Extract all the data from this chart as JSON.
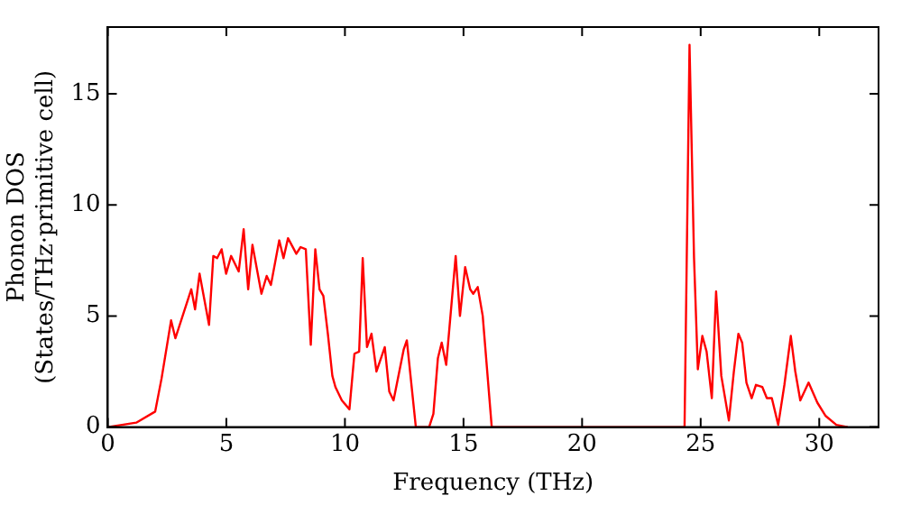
{
  "chart_data": {
    "type": "line",
    "xlabel": "Frequency (THz)",
    "ylabel": "Phonon DOS\n(States/THz·primitive cell)",
    "xlim": [
      0,
      32.5
    ],
    "ylim": [
      0,
      18
    ],
    "xticks": [
      0,
      5,
      10,
      15,
      20,
      25,
      30
    ],
    "yticks": [
      0,
      5,
      10,
      15
    ],
    "grid": false,
    "legend": false,
    "marker": "none",
    "line_style": "solid",
    "series": [
      {
        "color": "#ff0000",
        "x": [
          0,
          1.2,
          2.0,
          2.27,
          2.67,
          2.85,
          3.52,
          3.68,
          3.87,
          4.27,
          4.45,
          4.61,
          4.8,
          4.99,
          5.2,
          5.52,
          5.73,
          5.92,
          6.1,
          6.48,
          6.7,
          6.88,
          7.23,
          7.41,
          7.6,
          7.95,
          8.13,
          8.35,
          8.56,
          8.75,
          8.93,
          9.09,
          9.28,
          9.47,
          9.6,
          9.87,
          10.19,
          10.4,
          10.6,
          10.75,
          10.93,
          11.12,
          11.33,
          11.68,
          11.87,
          12.05,
          12.48,
          12.61,
          12.99,
          13.55,
          13.73,
          13.92,
          14.08,
          14.27,
          14.67,
          14.85,
          15.07,
          15.28,
          15.41,
          15.6,
          15.81,
          16.19,
          24.32,
          24.53,
          24.72,
          24.88,
          25.07,
          25.25,
          25.47,
          25.65,
          25.87,
          26.19,
          26.4,
          26.59,
          26.75,
          26.93,
          27.15,
          27.33,
          27.6,
          27.79,
          28.0,
          28.27,
          28.53,
          28.8,
          28.99,
          29.2,
          29.55,
          29.92,
          30.27,
          30.72,
          31.2
        ],
        "values": [
          0,
          0.2,
          0.7,
          2.2,
          4.8,
          4.0,
          6.2,
          5.3,
          6.9,
          4.6,
          7.7,
          7.6,
          8.0,
          6.9,
          7.7,
          7.0,
          8.9,
          6.2,
          8.2,
          6.0,
          6.8,
          6.4,
          8.4,
          7.6,
          8.5,
          7.8,
          8.1,
          8.0,
          3.7,
          8.0,
          6.2,
          5.9,
          4.2,
          2.3,
          1.8,
          1.2,
          0.8,
          3.3,
          3.4,
          7.6,
          3.6,
          4.2,
          2.5,
          3.6,
          1.6,
          1.2,
          3.5,
          3.9,
          0,
          0,
          0.6,
          3.1,
          3.8,
          2.8,
          7.7,
          5.0,
          7.2,
          6.2,
          6.0,
          6.3,
          5.0,
          0,
          0,
          17.2,
          7.6,
          2.6,
          4.1,
          3.4,
          1.3,
          6.1,
          2.3,
          0.3,
          2.5,
          4.2,
          3.8,
          2.0,
          1.3,
          1.9,
          1.8,
          1.3,
          1.3,
          0.1,
          1.9,
          4.1,
          2.5,
          1.2,
          2.0,
          1.1,
          0.5,
          0.1,
          0
        ]
      }
    ]
  }
}
